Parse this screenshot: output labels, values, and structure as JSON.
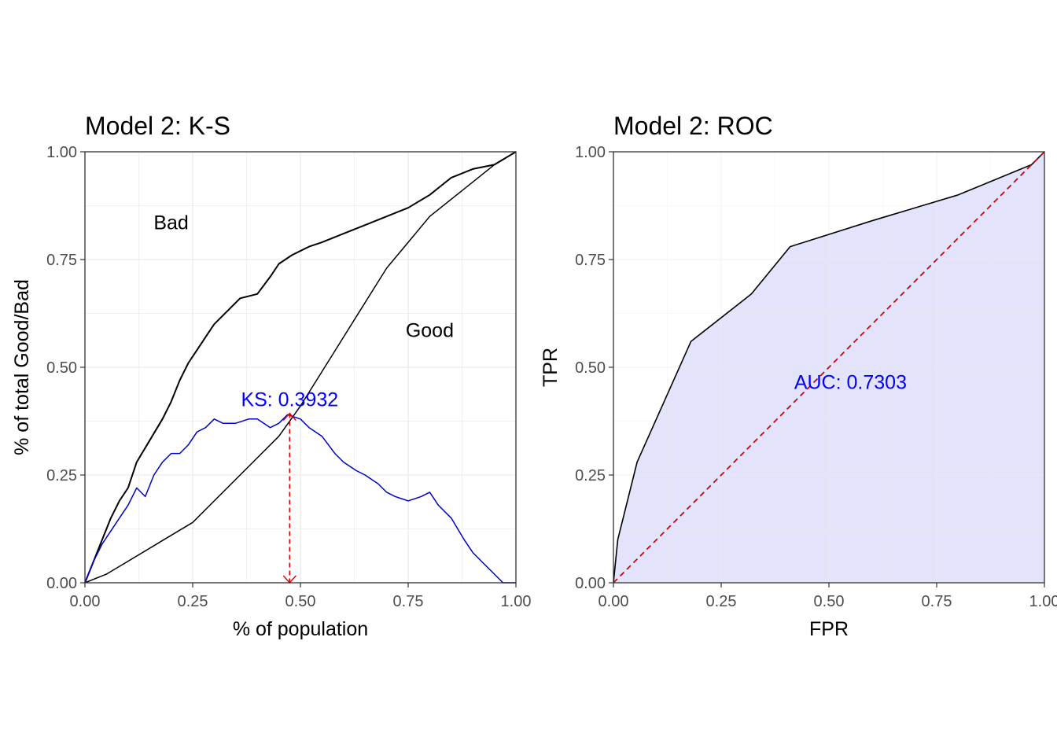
{
  "colors": {
    "ks_curve": "#0000cc",
    "ks_label": "#0000ff",
    "ks_marker": "#dd0000",
    "diagonal": "#dd0000",
    "auc_fill": "#e3e3fc",
    "auc_label": "#0000ff",
    "axis": "#000000",
    "tick_text": "#4d4d4d",
    "grid": "#ebebeb"
  },
  "chart_data": [
    {
      "type": "line",
      "title": "Model 2: K-S",
      "xlabel": "% of population",
      "ylabel": "% of total Good/Bad",
      "xlim": [
        0,
        1
      ],
      "ylim": [
        0,
        1
      ],
      "x_ticks": [
        "0.00",
        "0.25",
        "0.50",
        "0.75",
        "1.00"
      ],
      "y_ticks": [
        "0.00",
        "0.25",
        "0.50",
        "0.75",
        "1.00"
      ],
      "grid": true,
      "annotations": {
        "bad": "Bad",
        "good": "Good",
        "ks": "KS: 0.3932"
      },
      "annotation_positions": {
        "bad": [
          0.2,
          0.82
        ],
        "good": [
          0.8,
          0.57
        ],
        "ks": [
          0.475,
          0.41
        ]
      },
      "ks_value": 0.3932,
      "ks_x": 0.475,
      "series": [
        {
          "name": "Bad",
          "x": [
            0,
            0.02,
            0.04,
            0.06,
            0.08,
            0.1,
            0.12,
            0.15,
            0.18,
            0.2,
            0.22,
            0.24,
            0.26,
            0.28,
            0.3,
            0.33,
            0.36,
            0.4,
            0.43,
            0.45,
            0.48,
            0.52,
            0.55,
            0.6,
            0.65,
            0.7,
            0.75,
            0.8,
            0.85,
            0.9,
            0.95,
            1.0
          ],
          "y": [
            0,
            0.05,
            0.1,
            0.15,
            0.19,
            0.22,
            0.28,
            0.33,
            0.38,
            0.42,
            0.47,
            0.51,
            0.54,
            0.57,
            0.6,
            0.63,
            0.66,
            0.67,
            0.71,
            0.74,
            0.76,
            0.78,
            0.79,
            0.81,
            0.83,
            0.85,
            0.87,
            0.9,
            0.94,
            0.96,
            0.97,
            1.0
          ]
        },
        {
          "name": "Good",
          "x": [
            0,
            0.05,
            0.1,
            0.15,
            0.2,
            0.25,
            0.3,
            0.35,
            0.4,
            0.45,
            0.5,
            0.55,
            0.6,
            0.65,
            0.7,
            0.75,
            0.8,
            0.85,
            0.9,
            0.95,
            1.0
          ],
          "y": [
            0,
            0.02,
            0.05,
            0.08,
            0.11,
            0.14,
            0.19,
            0.24,
            0.29,
            0.34,
            0.41,
            0.49,
            0.57,
            0.65,
            0.73,
            0.79,
            0.85,
            0.89,
            0.93,
            0.97,
            1.0
          ]
        },
        {
          "name": "KS",
          "x": [
            0,
            0.02,
            0.04,
            0.06,
            0.08,
            0.1,
            0.12,
            0.14,
            0.16,
            0.18,
            0.2,
            0.22,
            0.24,
            0.26,
            0.28,
            0.3,
            0.32,
            0.35,
            0.38,
            0.4,
            0.43,
            0.45,
            0.47,
            0.5,
            0.52,
            0.55,
            0.58,
            0.6,
            0.63,
            0.65,
            0.68,
            0.7,
            0.72,
            0.75,
            0.78,
            0.8,
            0.82,
            0.85,
            0.88,
            0.9,
            0.93,
            0.95,
            0.97,
            1.0
          ],
          "y": [
            0,
            0.05,
            0.09,
            0.12,
            0.15,
            0.18,
            0.22,
            0.2,
            0.25,
            0.28,
            0.3,
            0.3,
            0.32,
            0.35,
            0.36,
            0.38,
            0.37,
            0.37,
            0.38,
            0.38,
            0.36,
            0.37,
            0.39,
            0.38,
            0.36,
            0.34,
            0.3,
            0.28,
            0.26,
            0.25,
            0.23,
            0.21,
            0.2,
            0.19,
            0.2,
            0.21,
            0.18,
            0.15,
            0.1,
            0.07,
            0.04,
            0.02,
            0.0,
            0.0
          ]
        }
      ]
    },
    {
      "type": "area",
      "title": "Model 2: ROC",
      "xlabel": "FPR",
      "ylabel": "TPR",
      "xlim": [
        0,
        1
      ],
      "ylim": [
        0,
        1
      ],
      "x_ticks": [
        "0.00",
        "0.25",
        "0.50",
        "0.75",
        "1.00"
      ],
      "y_ticks": [
        "0.00",
        "0.25",
        "0.50",
        "0.75",
        "1.00"
      ],
      "grid": true,
      "auc_value": 0.7303,
      "annotations": {
        "auc": "AUC: 0.7303"
      },
      "annotation_positions": {
        "auc": [
          0.55,
          0.45
        ]
      },
      "series": [
        {
          "name": "ROC",
          "x": [
            0,
            0.01,
            0.055,
            0.18,
            0.32,
            0.41,
            0.6,
            0.8,
            0.97,
            1.0
          ],
          "y": [
            0,
            0.1,
            0.28,
            0.56,
            0.67,
            0.78,
            0.84,
            0.9,
            0.97,
            1.0
          ]
        },
        {
          "name": "Diagonal",
          "x": [
            0,
            1
          ],
          "y": [
            0,
            1
          ]
        }
      ]
    }
  ]
}
